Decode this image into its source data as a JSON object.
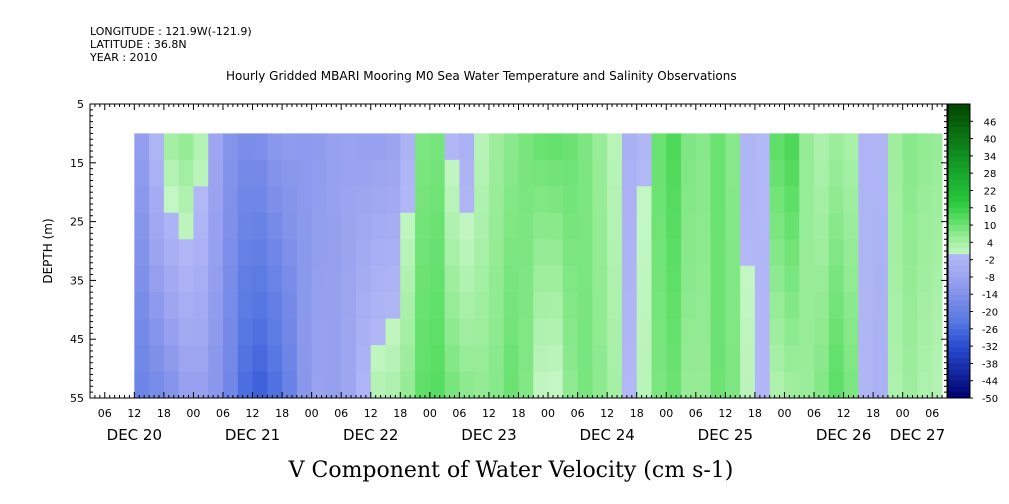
{
  "header": {
    "longitude": "LONGITUDE : 121.9W(-121.9)",
    "latitude": "LATITUDE : 36.8N",
    "year": "YEAR : 2010",
    "title": "Hourly Gridded MBARI Mooring M0 Sea Water Temperature and Salinity Observations"
  },
  "chart_data": {
    "type": "heatmap",
    "title": "Hourly Gridded MBARI Mooring M0 Sea Water Temperature and Salinity Observations",
    "xlabel": "V Component of Water Velocity (cm s-1)",
    "ylabel": "DEPTH (m)",
    "ylim": [
      55,
      5
    ],
    "y_ticks": [
      "5",
      "15",
      "25",
      "35",
      "45",
      "55"
    ],
    "x_hour_ticks": [
      "06",
      "12",
      "18",
      "00",
      "06",
      "12",
      "18",
      "00",
      "06",
      "12",
      "18",
      "00",
      "06",
      "12",
      "18",
      "00",
      "06",
      "12",
      "18",
      "00",
      "06",
      "12",
      "18",
      "00",
      "06",
      "12",
      "18",
      "00",
      "06",
      "12",
      "18",
      "00",
      "06"
    ],
    "x_day_labels": [
      "DEC 20",
      "DEC 21",
      "DEC 22",
      "DEC 23",
      "DEC 24",
      "DEC 25",
      "DEC 26",
      "DEC 27"
    ],
    "x_range_hours": [
      "2010-12-20 03:00",
      "2010-12-27 09:00"
    ],
    "data_start": "2010-12-20 12:00",
    "data_end": "2010-12-27 08:00",
    "depth_range_data": [
      10,
      55
    ],
    "colorbar": {
      "labels": [
        "46",
        "40",
        "34",
        "28",
        "22",
        "16",
        "10",
        "4",
        "-2",
        "-8",
        "-14",
        "-20",
        "-26",
        "-32",
        "-38",
        "-44",
        "-50"
      ],
      "min": -50,
      "max": 52,
      "step": 2
    },
    "columns_approx": [
      {
        "time": "2010-12-20 12:00",
        "surface": -14,
        "bottom": -20
      },
      {
        "time": "2010-12-20 18:00",
        "surface": 4,
        "bottom": -16
      },
      {
        "time": "2010-12-21 00:00",
        "surface": 8,
        "bottom": -8
      },
      {
        "time": "2010-12-21 06:00",
        "surface": -12,
        "bottom": -14
      },
      {
        "time": "2010-12-21 12:00",
        "surface": -16,
        "bottom": -30
      },
      {
        "time": "2010-12-21 18:00",
        "surface": -10,
        "bottom": -24
      },
      {
        "time": "2010-12-22 00:00",
        "surface": -12,
        "bottom": -8
      },
      {
        "time": "2010-12-22 06:00",
        "surface": -8,
        "bottom": -10
      },
      {
        "time": "2010-12-22 12:00",
        "surface": -10,
        "bottom": 2
      },
      {
        "time": "2010-12-22 18:00",
        "surface": -8,
        "bottom": 4
      },
      {
        "time": "2010-12-23 00:00",
        "surface": 14,
        "bottom": 14
      },
      {
        "time": "2010-12-23 06:00",
        "surface": -6,
        "bottom": 8
      },
      {
        "time": "2010-12-23 12:00",
        "surface": 4,
        "bottom": 6
      },
      {
        "time": "2010-12-23 18:00",
        "surface": 8,
        "bottom": 12
      },
      {
        "time": "2010-12-24 00:00",
        "surface": 12,
        "bottom": -4
      },
      {
        "time": "2010-12-24 06:00",
        "surface": 10,
        "bottom": 10
      },
      {
        "time": "2010-12-24 12:00",
        "surface": 4,
        "bottom": 6
      },
      {
        "time": "2010-12-24 18:00",
        "surface": -6,
        "bottom": -2
      },
      {
        "time": "2010-12-25 00:00",
        "surface": 16,
        "bottom": 12
      },
      {
        "time": "2010-12-25 06:00",
        "surface": 6,
        "bottom": 4
      },
      {
        "time": "2010-12-25 12:00",
        "surface": 12,
        "bottom": 12
      },
      {
        "time": "2010-12-25 18:00",
        "surface": -6,
        "bottom": -2
      },
      {
        "time": "2010-12-26 00:00",
        "surface": 18,
        "bottom": 4
      },
      {
        "time": "2010-12-26 06:00",
        "surface": 2,
        "bottom": 6
      },
      {
        "time": "2010-12-26 12:00",
        "surface": 6,
        "bottom": 14
      },
      {
        "time": "2010-12-26 18:00",
        "surface": -4,
        "bottom": -6
      },
      {
        "time": "2010-12-27 00:00",
        "surface": 8,
        "bottom": 6
      },
      {
        "time": "2010-12-27 06:00",
        "surface": 6,
        "bottom": 2
      }
    ]
  }
}
